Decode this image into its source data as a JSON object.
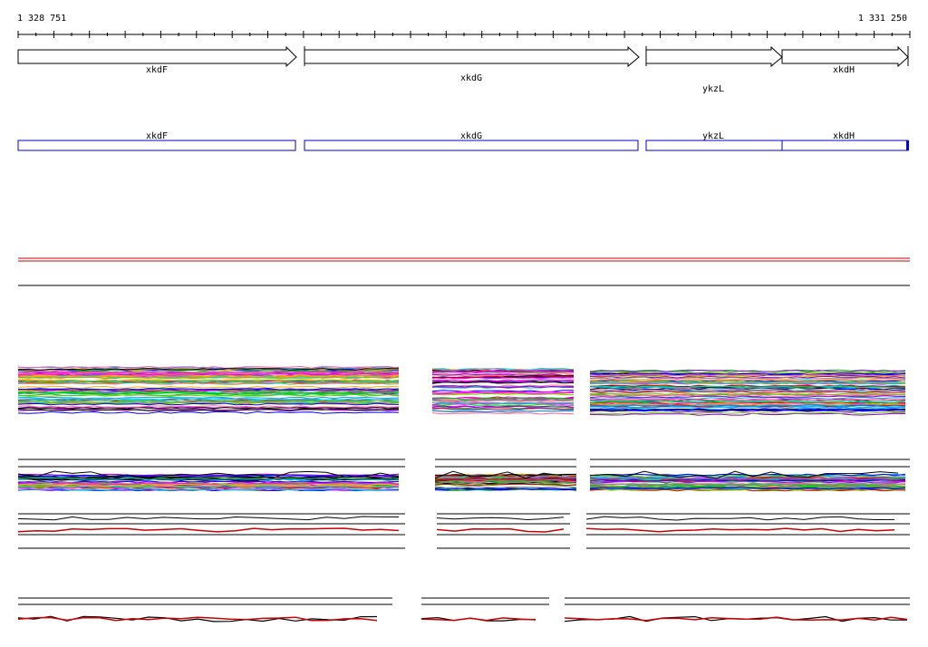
{
  "coordinates": {
    "start": "1 328 751",
    "end": "1 331 250"
  },
  "genes": [
    {
      "name": "xkdF",
      "strand": "+"
    },
    {
      "name": "xkdG",
      "strand": "+"
    },
    {
      "name": "ykzL",
      "strand": "+"
    },
    {
      "name": "xkdH",
      "strand": "+"
    }
  ],
  "annotations": [
    {
      "name": "xkdF"
    },
    {
      "name": "xkdG"
    },
    {
      "name": "ykzL"
    },
    {
      "name": "xkdH"
    }
  ],
  "colors": {
    "gene_outline": "#000000",
    "annotation_box": "#0000cc",
    "reference_line": "#cc0000",
    "track_line": "#000000",
    "series_palette": [
      "#ff00ff",
      "#00cccc",
      "#cc0000",
      "#0000ff",
      "#00cc00",
      "#ffaa00",
      "#8800cc",
      "#888888",
      "#000000",
      "#ff6699",
      "#66cc00",
      "#0099ff"
    ]
  }
}
